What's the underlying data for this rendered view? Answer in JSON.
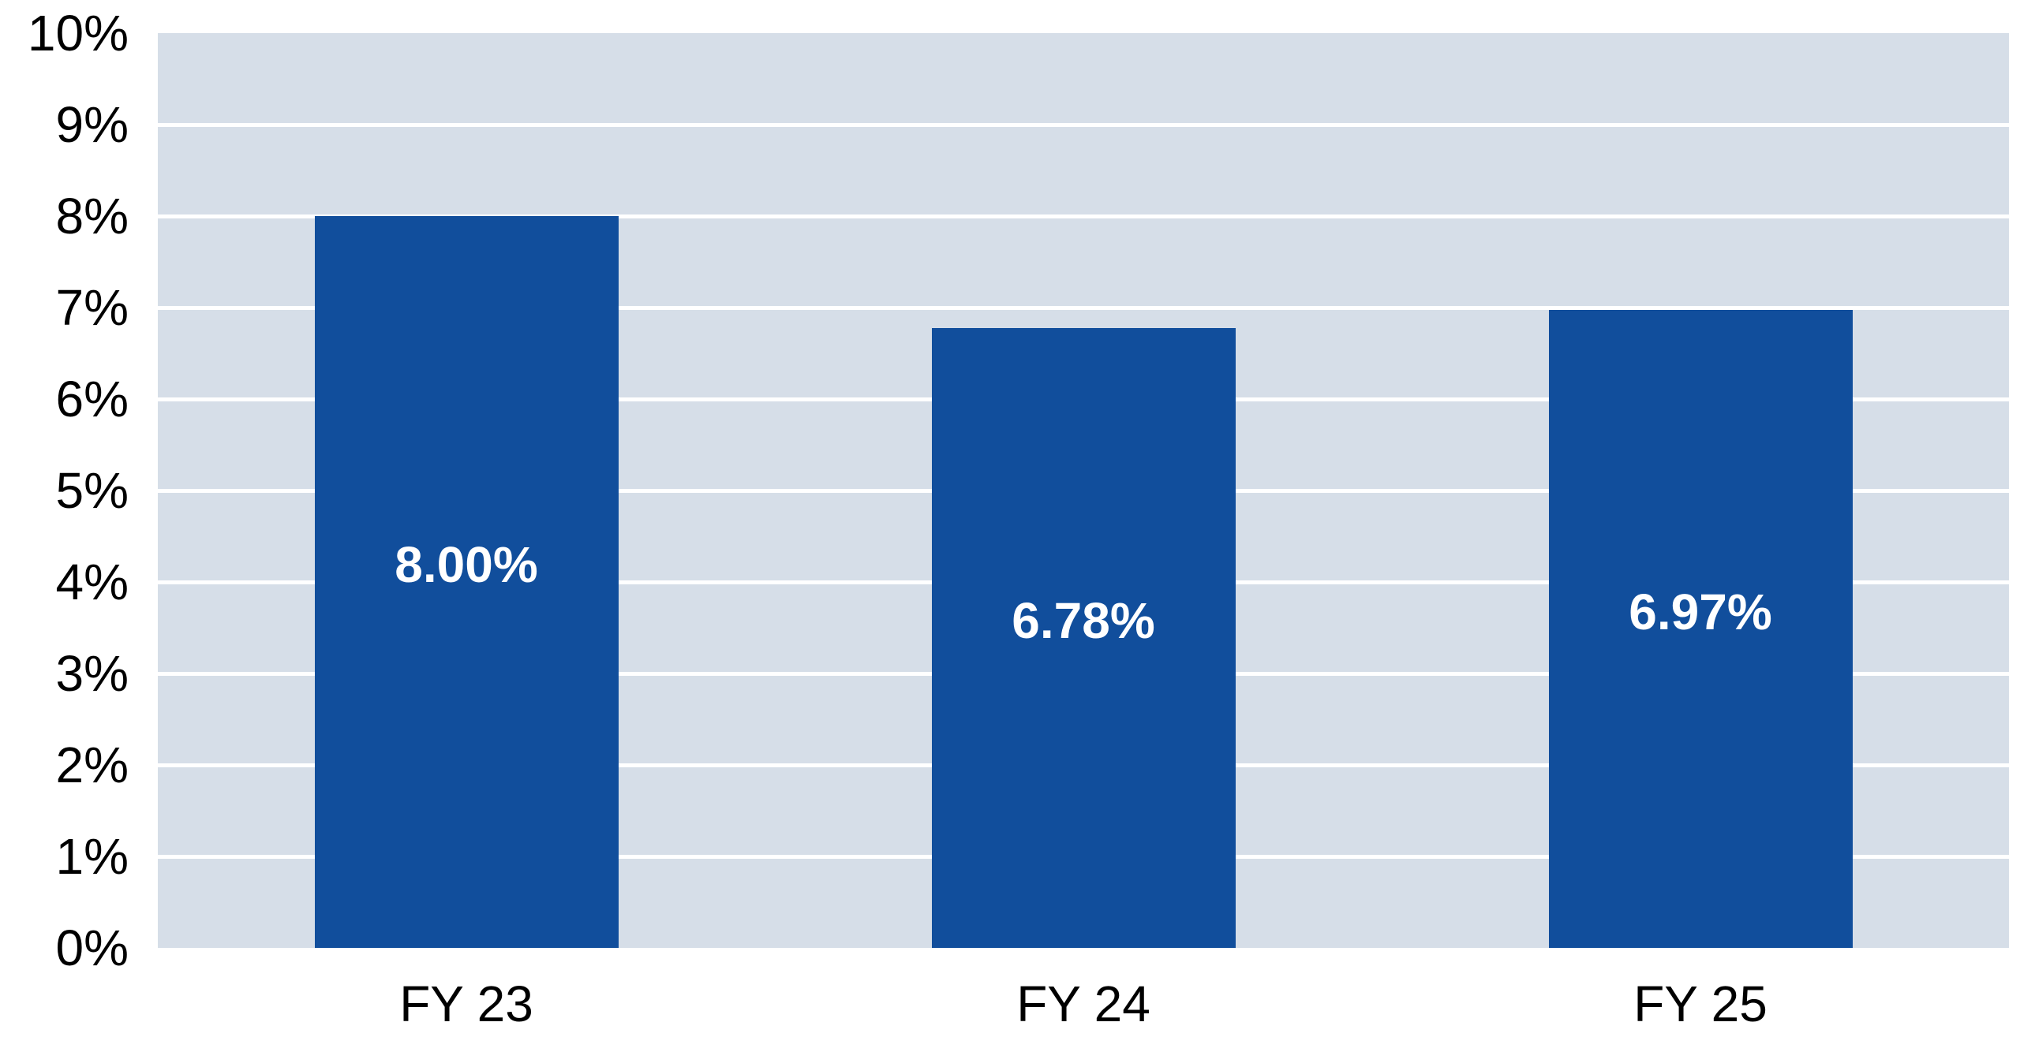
{
  "chart_data": {
    "type": "bar",
    "categories": [
      "FY 23",
      "FY 24",
      "FY 25"
    ],
    "values": [
      8.0,
      6.78,
      6.97
    ],
    "data_labels": [
      "8.00%",
      "6.78%",
      "6.97%"
    ],
    "title": "",
    "xlabel": "",
    "ylabel": "",
    "ylim": [
      0,
      10
    ],
    "y_tick_step": 1,
    "y_tick_labels": [
      "0%",
      "1%",
      "2%",
      "3%",
      "4%",
      "5%",
      "6%",
      "7%",
      "8%",
      "9%",
      "10%"
    ],
    "grid": true,
    "legend": false,
    "colors": {
      "bar_fill": "#114E9C",
      "plot_background": "#D6DEE8",
      "gridline": "#FFFFFF",
      "axis_text": "#000000",
      "data_label_text": "#FFFFFF",
      "page_background": "#FFFFFF"
    }
  }
}
